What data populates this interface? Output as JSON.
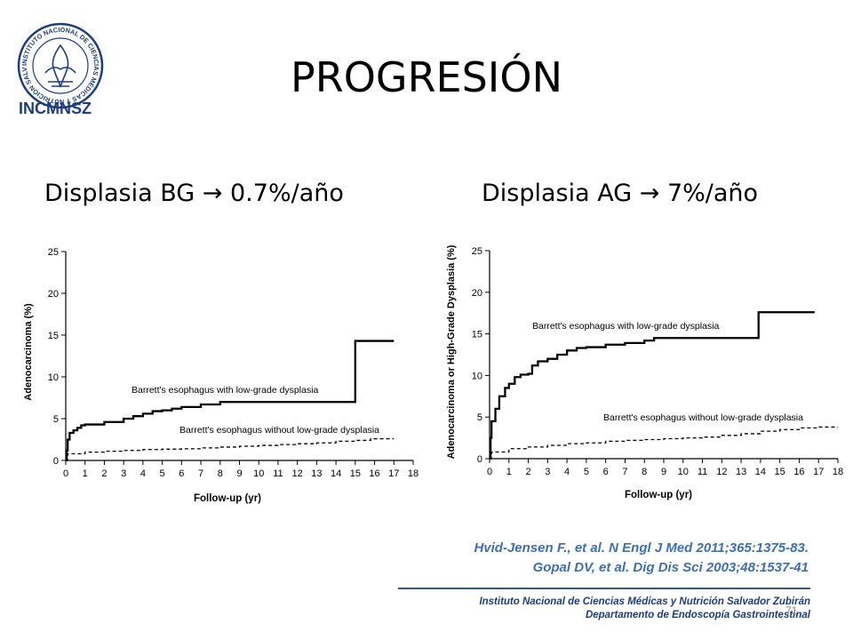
{
  "title": "PROGRESIÓN",
  "logo": {
    "text": "INCMNSZ",
    "seal_text": "INSTITUTO NACIONAL DE CIENCIAS MÉDICAS Y NUTRICIÓN SALVADOR ZUBIRÁN",
    "color": "#1f3d7a"
  },
  "subtitles": {
    "left": "Displasia BG → 0.7%/año",
    "right": "Displasia AG → 7%/año"
  },
  "chart_data": [
    {
      "type": "line",
      "step": true,
      "ylabel": "Adenocarcinoma (%)",
      "xlabel": "Follow-up (yr)",
      "xlim": [
        0,
        18
      ],
      "ylim": [
        0,
        25
      ],
      "xticks": [
        "0",
        "1",
        "2",
        "3",
        "4",
        "5",
        "6",
        "7",
        "8",
        "9",
        "10",
        "11",
        "12",
        "13",
        "14",
        "15",
        "16",
        "17",
        "18"
      ],
      "yticks": [
        "0",
        "5",
        "10",
        "15",
        "20",
        "25"
      ],
      "grid": false,
      "series": [
        {
          "name": "Barrett's esophagus with low-grade dysplasia",
          "style": "solid",
          "points": [
            [
              0,
              0
            ],
            [
              0.05,
              1.2
            ],
            [
              0.1,
              2.5
            ],
            [
              0.2,
              3.3
            ],
            [
              0.4,
              3.6
            ],
            [
              0.6,
              3.9
            ],
            [
              0.8,
              4.2
            ],
            [
              1,
              4.3
            ],
            [
              2,
              4.6
            ],
            [
              3,
              5.0
            ],
            [
              3.5,
              5.3
            ],
            [
              4,
              5.6
            ],
            [
              4.5,
              5.9
            ],
            [
              5,
              6.0
            ],
            [
              5.5,
              6.2
            ],
            [
              6,
              6.4
            ],
            [
              7,
              6.7
            ],
            [
              8,
              7.0
            ],
            [
              14.9,
              7.0
            ],
            [
              15,
              14.3
            ],
            [
              17,
              14.3
            ]
          ]
        },
        {
          "name": "Barrett's esophagus without low-grade dysplasia",
          "style": "dashed",
          "points": [
            [
              0,
              0
            ],
            [
              0.1,
              0.8
            ],
            [
              1,
              1.0
            ],
            [
              2,
              1.1
            ],
            [
              3,
              1.2
            ],
            [
              4,
              1.3
            ],
            [
              5,
              1.35
            ],
            [
              6,
              1.4
            ],
            [
              7,
              1.5
            ],
            [
              8,
              1.6
            ],
            [
              9,
              1.7
            ],
            [
              10,
              1.8
            ],
            [
              11,
              1.9
            ],
            [
              12,
              2.0
            ],
            [
              13,
              2.1
            ],
            [
              14,
              2.3
            ],
            [
              15,
              2.4
            ],
            [
              15.8,
              2.6
            ],
            [
              17,
              2.6
            ]
          ]
        }
      ]
    },
    {
      "type": "line",
      "step": true,
      "ylabel": "Adenocarcinoma or High-Grade Dysplasia (%)",
      "xlabel": "Follow-up (yr)",
      "xlim": [
        0,
        18
      ],
      "ylim": [
        0,
        25
      ],
      "xticks": [
        "0",
        "1",
        "2",
        "3",
        "4",
        "5",
        "6",
        "7",
        "8",
        "9",
        "10",
        "11",
        "12",
        "13",
        "14",
        "15",
        "16",
        "17",
        "18"
      ],
      "yticks": [
        "0",
        "5",
        "10",
        "15",
        "20",
        "25"
      ],
      "grid": false,
      "series": [
        {
          "name": "Barrett's esophagus with low-grade dysplasia",
          "style": "solid",
          "points": [
            [
              0,
              0
            ],
            [
              0.05,
              2.5
            ],
            [
              0.1,
              4.5
            ],
            [
              0.3,
              6
            ],
            [
              0.5,
              7.5
            ],
            [
              0.8,
              8.5
            ],
            [
              1,
              9.0
            ],
            [
              1.3,
              9.8
            ],
            [
              1.6,
              10.1
            ],
            [
              2,
              10.2
            ],
            [
              2.2,
              11.2
            ],
            [
              2.5,
              11.7
            ],
            [
              3,
              12.0
            ],
            [
              3.5,
              12.5
            ],
            [
              4,
              13.0
            ],
            [
              4.5,
              13.3
            ],
            [
              5,
              13.4
            ],
            [
              6,
              13.7
            ],
            [
              7,
              13.9
            ],
            [
              8,
              14.2
            ],
            [
              8.5,
              14.5
            ],
            [
              13.8,
              14.5
            ],
            [
              13.9,
              17.6
            ],
            [
              16.8,
              17.6
            ]
          ]
        },
        {
          "name": "Barrett's esophagus without low-grade dysplasia",
          "style": "dashed",
          "points": [
            [
              0,
              0
            ],
            [
              0.1,
              0.8
            ],
            [
              1,
              1.2
            ],
            [
              2,
              1.4
            ],
            [
              3,
              1.6
            ],
            [
              4,
              1.8
            ],
            [
              5,
              1.9
            ],
            [
              6,
              2.1
            ],
            [
              7,
              2.2
            ],
            [
              8,
              2.3
            ],
            [
              9,
              2.4
            ],
            [
              10,
              2.5
            ],
            [
              11,
              2.6
            ],
            [
              12,
              2.8
            ],
            [
              13,
              3.0
            ],
            [
              14,
              3.3
            ],
            [
              15,
              3.5
            ],
            [
              16,
              3.7
            ],
            [
              17,
              3.8
            ],
            [
              18,
              3.8
            ]
          ]
        }
      ]
    }
  ],
  "references": [
    "Hvid-Jensen F., et al. N Engl J Med 2011;365:1375-83.",
    "Gopal DV, et al. Dig Dis Sci 2003;48:1537-41"
  ],
  "institution": {
    "line1": "Instituto Nacional de Ciencias Médicas y Nutrición Salvador Zubirán",
    "line2": "Departamento de Endoscopía Gastrointestinal"
  },
  "page_number": "71"
}
